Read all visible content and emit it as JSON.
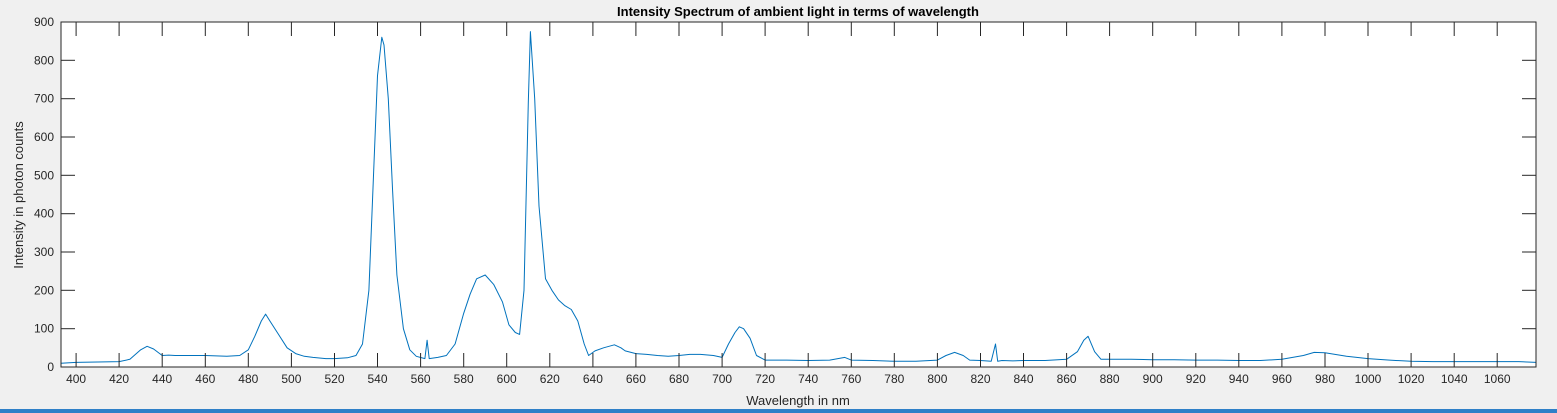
{
  "window": {
    "accent": "#2f80c8"
  },
  "chart_data": {
    "type": "line",
    "title": "Intensity Spectrum of ambient light in terms of wavelength",
    "xlabel": "Wavelength in nm",
    "ylabel": "Intensity in photon counts",
    "xlim": [
      393,
      1078
    ],
    "ylim": [
      0,
      900
    ],
    "xticks": [
      400,
      420,
      440,
      460,
      480,
      500,
      520,
      540,
      560,
      580,
      600,
      620,
      640,
      660,
      680,
      700,
      720,
      740,
      760,
      780,
      800,
      820,
      840,
      860,
      880,
      900,
      920,
      940,
      960,
      980,
      1000,
      1020,
      1040,
      1060
    ],
    "yticks": [
      0,
      100,
      200,
      300,
      400,
      500,
      600,
      700,
      800,
      900
    ],
    "grid": false,
    "line_color": "#0072bd",
    "series": [
      {
        "x": [
          393,
          400,
          410,
          420,
          425,
          430,
          433,
          436,
          440,
          443,
          446,
          450,
          460,
          470,
          476,
          480,
          483,
          486,
          488,
          490,
          494,
          498,
          502,
          506,
          510,
          516,
          520,
          526,
          530,
          533,
          536,
          538,
          540,
          542,
          543,
          545,
          547,
          549,
          552,
          555,
          558,
          562,
          563,
          564,
          568,
          572,
          576,
          580,
          583,
          586,
          590,
          594,
          598,
          601,
          604,
          606,
          608,
          610,
          611,
          613,
          615,
          618,
          621,
          624,
          627,
          630,
          633,
          636,
          638,
          641,
          645,
          650,
          653,
          655,
          660,
          665,
          670,
          675,
          680,
          685,
          690,
          696,
          700,
          703,
          706,
          708,
          710,
          713,
          716,
          720,
          730,
          740,
          750,
          757,
          760,
          770,
          780,
          790,
          800,
          804,
          808,
          812,
          815,
          820,
          825,
          827,
          828,
          830,
          835,
          840,
          850,
          860,
          865,
          868,
          870,
          873,
          876,
          880,
          890,
          900,
          910,
          920,
          930,
          940,
          950,
          960,
          970,
          975,
          980,
          990,
          1000,
          1010,
          1020,
          1030,
          1040,
          1050,
          1060,
          1070,
          1078
        ],
        "y": [
          10,
          12,
          13,
          14,
          20,
          45,
          54,
          47,
          30,
          31,
          30,
          30,
          30,
          28,
          30,
          45,
          80,
          120,
          138,
          120,
          85,
          50,
          35,
          28,
          25,
          22,
          22,
          24,
          30,
          60,
          200,
          480,
          760,
          860,
          840,
          700,
          460,
          240,
          100,
          45,
          28,
          22,
          70,
          22,
          25,
          30,
          60,
          140,
          190,
          230,
          240,
          215,
          170,
          110,
          90,
          85,
          200,
          690,
          875,
          700,
          420,
          230,
          200,
          175,
          160,
          150,
          120,
          60,
          30,
          42,
          50,
          58,
          50,
          42,
          35,
          33,
          30,
          28,
          30,
          33,
          33,
          30,
          25,
          60,
          90,
          105,
          100,
          75,
          30,
          18,
          18,
          17,
          18,
          25,
          18,
          17,
          15,
          15,
          18,
          30,
          38,
          30,
          18,
          17,
          15,
          60,
          15,
          17,
          16,
          17,
          17,
          20,
          40,
          70,
          80,
          40,
          20,
          20,
          20,
          19,
          19,
          18,
          18,
          17,
          17,
          20,
          30,
          38,
          37,
          28,
          22,
          18,
          15,
          14,
          14,
          14,
          14,
          14,
          12
        ]
      }
    ]
  }
}
